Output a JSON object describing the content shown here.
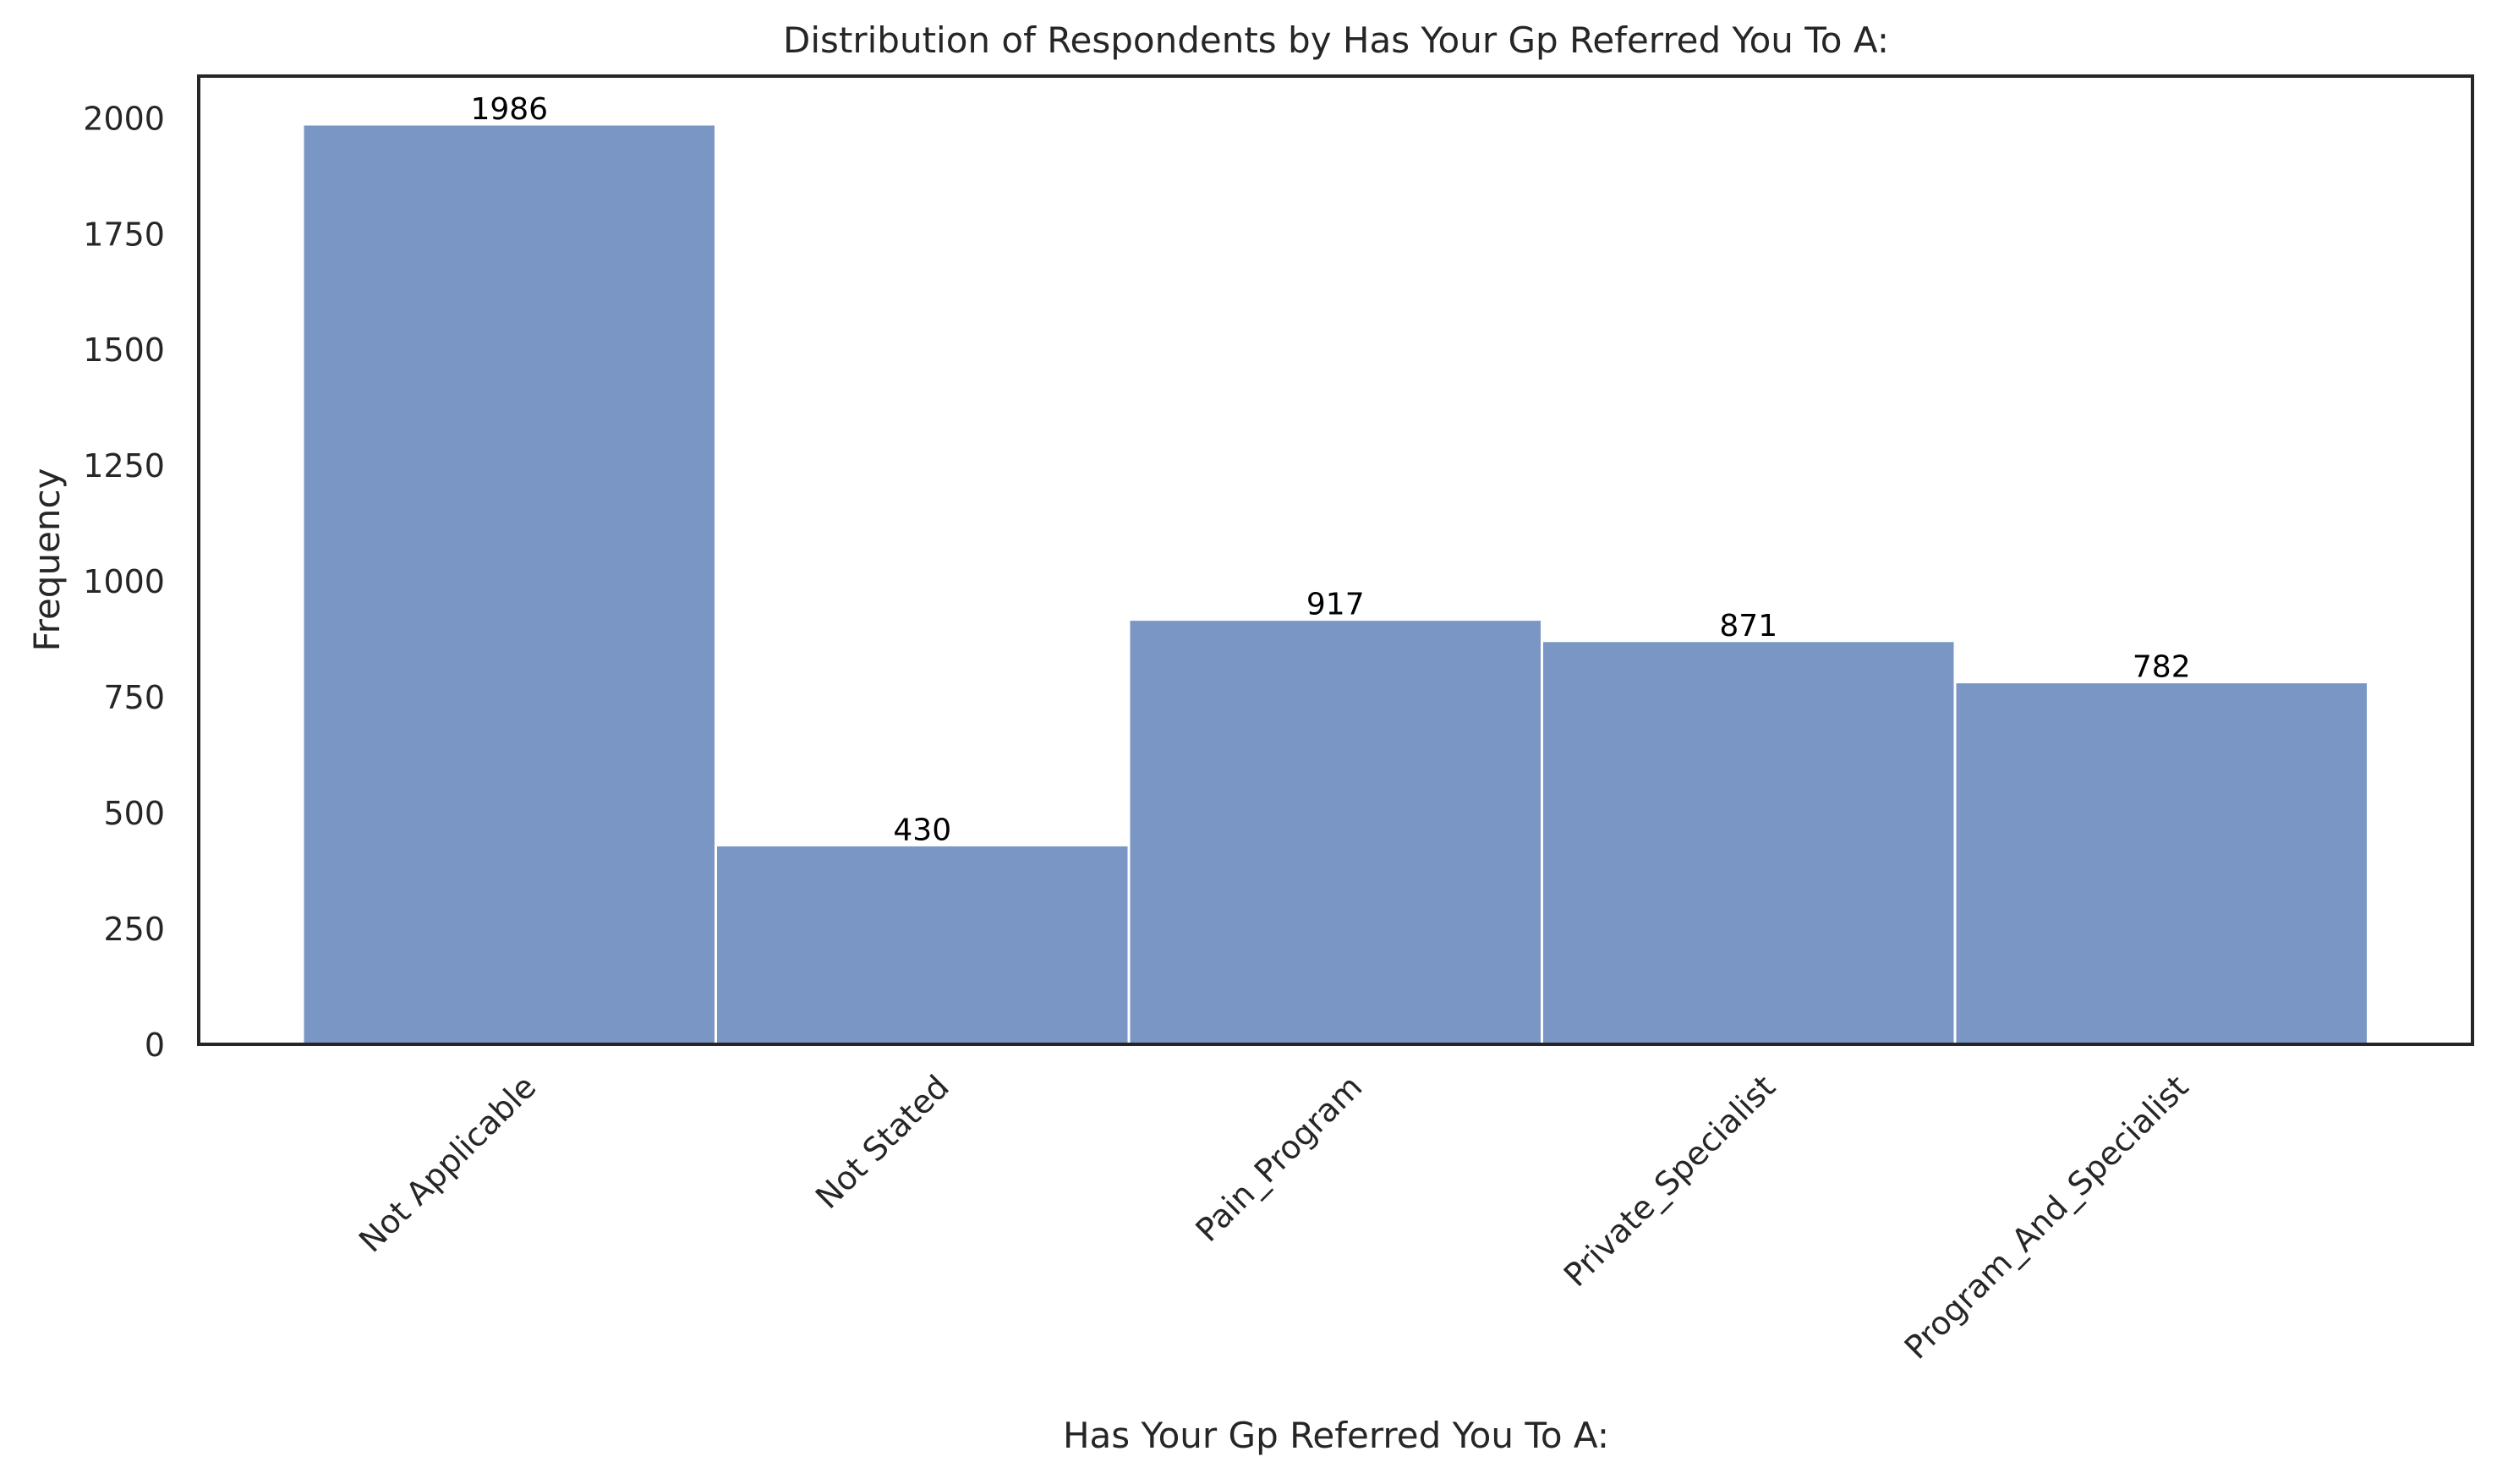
{
  "chart_data": {
    "type": "bar",
    "title": "Distribution of Respondents by Has Your Gp Referred You To A:",
    "xlabel": "Has Your Gp Referred You To A:",
    "ylabel": "Frequency",
    "categories": [
      "Not Applicable",
      "Not Stated",
      "Pain_Program",
      "Private_Specialist",
      "Program_And_Specialist"
    ],
    "values": [
      1986,
      430,
      917,
      871,
      782
    ],
    "data_labels": [
      "1986",
      "430",
      "917",
      "871",
      "782"
    ],
    "ylim": [
      0,
      2090
    ],
    "yticks": [
      0,
      250,
      500,
      750,
      1000,
      1250,
      1500,
      1750,
      2000
    ],
    "ytick_labels": [
      "0",
      "250",
      "500",
      "750",
      "1000",
      "1250",
      "1500",
      "1750",
      "2000"
    ],
    "bar_color": "#7a96c4",
    "grid": false,
    "legend": "none"
  }
}
